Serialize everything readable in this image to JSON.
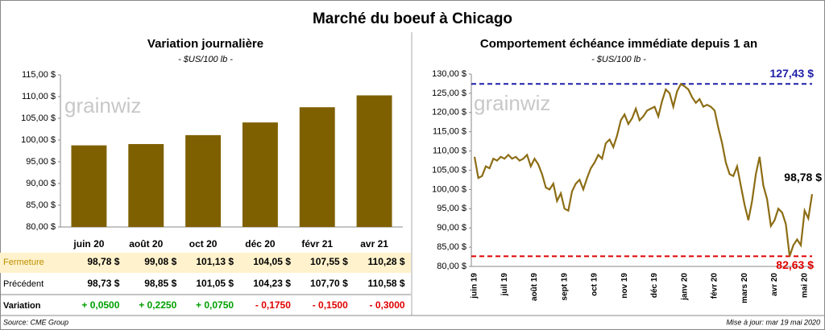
{
  "title": "Marché du boeuf à Chicago",
  "watermark": "grainwiz",
  "chart_data": [
    {
      "type": "bar",
      "title": "Variation  journalière",
      "subtitle": "- $US/100 lb -",
      "color": "#7f6000",
      "categories": [
        "juin 20",
        "août 20",
        "oct 20",
        "déc 20",
        "févr 21",
        "avr 21"
      ],
      "values": [
        98.78,
        99.08,
        101.13,
        104.05,
        107.55,
        110.28
      ],
      "ylim": [
        80,
        115
      ],
      "yticks": [
        {
          "value": 80,
          "label": "80,00 $"
        },
        {
          "value": 85,
          "label": "85,00 $"
        },
        {
          "value": 90,
          "label": "90,00 $"
        },
        {
          "value": 95,
          "label": "95,00 $"
        },
        {
          "value": 100,
          "label": "100,00 $"
        },
        {
          "value": 105,
          "label": "105,00 $"
        },
        {
          "value": 110,
          "label": "110,00 $"
        },
        {
          "value": 115,
          "label": "115,00 $"
        }
      ]
    },
    {
      "type": "line",
      "title": "Comportement  échéance immédiate depuis 1 an",
      "subtitle": "- $US/100 lb -",
      "color": "#8c6d14",
      "categories": [
        "juin 19",
        null,
        null,
        null,
        null,
        null,
        null,
        null,
        "juil 19",
        null,
        null,
        null,
        null,
        null,
        null,
        null,
        "août 19",
        null,
        null,
        null,
        null,
        null,
        null,
        null,
        "sept 19",
        null,
        null,
        null,
        null,
        null,
        null,
        null,
        "oct 19",
        null,
        null,
        null,
        null,
        null,
        null,
        null,
        "nov 19",
        null,
        null,
        null,
        null,
        null,
        null,
        null,
        "déc 19",
        null,
        null,
        null,
        null,
        null,
        null,
        null,
        "janv 20",
        null,
        null,
        null,
        null,
        null,
        null,
        null,
        "févr 20",
        null,
        null,
        null,
        null,
        null,
        null,
        null,
        "mars 20",
        null,
        null,
        null,
        null,
        null,
        null,
        null,
        "avr 20",
        null,
        null,
        null,
        null,
        null,
        null,
        null,
        "mai 20",
        null,
        null
      ],
      "values": [
        108.5,
        103,
        103.5,
        106,
        105.5,
        108,
        107.5,
        108.5,
        108,
        109,
        108,
        108.5,
        107.5,
        108,
        109,
        106,
        108,
        106.5,
        104,
        100.5,
        100,
        101.5,
        97,
        99,
        95,
        94.5,
        99.5,
        101.5,
        102.5,
        100,
        103,
        105.5,
        107,
        109,
        108,
        112,
        113,
        111,
        114,
        118,
        119.5,
        117,
        118.5,
        121,
        118,
        119,
        120.5,
        121,
        121.5,
        119,
        123,
        126,
        125,
        121.5,
        125.5,
        127.4,
        126.8,
        126,
        124,
        122.5,
        123.5,
        121.5,
        122,
        121.5,
        120.5,
        116,
        112,
        107,
        104,
        103.5,
        106,
        101,
        96,
        92,
        97,
        104,
        108.5,
        101,
        97.5,
        90.5,
        92,
        95,
        94,
        91,
        82.63,
        85.5,
        87,
        85.5,
        94.5,
        92.5,
        98.78
      ],
      "ylim": [
        80,
        130
      ],
      "yticks": [
        {
          "value": 80,
          "label": "80,00 $"
        },
        {
          "value": 85,
          "label": "85,00 $"
        },
        {
          "value": 90,
          "label": "90,00 $"
        },
        {
          "value": 95,
          "label": "95,00 $"
        },
        {
          "value": 100,
          "label": "100,00 $"
        },
        {
          "value": 105,
          "label": "105,00 $"
        },
        {
          "value": 110,
          "label": "110,00 $"
        },
        {
          "value": 115,
          "label": "115,00 $"
        },
        {
          "value": 120,
          "label": "120,00 $"
        },
        {
          "value": 125,
          "label": "125,00 $"
        },
        {
          "value": 130,
          "label": "130,00 $"
        }
      ],
      "hlines": [
        {
          "value": 127.43,
          "label": "127,43 $",
          "color": "#1f1fa8"
        },
        {
          "value": 82.63,
          "label": "82,63 $",
          "color": "#e00000"
        }
      ],
      "end_label": "98,78 $"
    }
  ],
  "table": {
    "rows": [
      {
        "label": "Fermeture",
        "cells": [
          {
            "text": "98,78  $",
            "color": "#000"
          },
          {
            "text": "99,08  $",
            "color": "#000"
          },
          {
            "text": "101,13  $",
            "color": "#000"
          },
          {
            "text": "104,05  $",
            "color": "#000"
          },
          {
            "text": "107,55  $",
            "color": "#000"
          },
          {
            "text": "110,28  $",
            "color": "#000"
          }
        ]
      },
      {
        "label": "Précédent",
        "cells": [
          {
            "text": "98,73  $",
            "color": "#000"
          },
          {
            "text": "98,85  $",
            "color": "#000"
          },
          {
            "text": "101,05  $",
            "color": "#000"
          },
          {
            "text": "104,23  $",
            "color": "#000"
          },
          {
            "text": "107,70  $",
            "color": "#000"
          },
          {
            "text": "110,58  $",
            "color": "#000"
          }
        ]
      },
      {
        "label": "Variation",
        "cells": [
          {
            "text": "+ 0,0500",
            "color": "#00a000"
          },
          {
            "text": "+ 0,2250",
            "color": "#00a000"
          },
          {
            "text": "+ 0,0750",
            "color": "#00a000"
          },
          {
            "text": "- 0,1750",
            "color": "#e00000"
          },
          {
            "text": "- 0,1500",
            "color": "#e00000"
          },
          {
            "text": "- 0,3000",
            "color": "#e00000"
          }
        ]
      }
    ]
  },
  "footer": {
    "source": "Source: CME Group",
    "updated": "Mise à jour: mar 19 mai 2020"
  }
}
